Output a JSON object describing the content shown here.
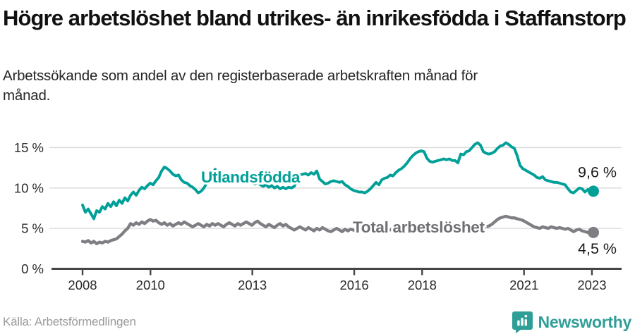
{
  "header": {
    "title": "Högre arbetslöshet bland utrikes- än inrikesfödda i Staffanstorp",
    "subtitle": "Arbetssökande som andel av den registerbaserade arbetskraften månad för månad."
  },
  "chart_data": {
    "type": "line",
    "title": "Högre arbetslöshet bland utrikes- än inrikesfödda i Staffanstorp",
    "subtitle": "Arbetssökande som andel av den registerbaserade arbetskraften månad för månad.",
    "x_unit": "month",
    "start_year": 2008,
    "end_point": "2023-02",
    "x_ticks": [
      2008,
      2010,
      2013,
      2016,
      2018,
      2021,
      2023
    ],
    "y_ticks": [
      0,
      5,
      10,
      15
    ],
    "y_tick_suffix": " %",
    "ylim": [
      0,
      16.5
    ],
    "grid": true,
    "legend_position": "inline-on-line",
    "colors": {
      "utlandsfodda": "#00a098",
      "total": "#7e7e83",
      "grid": "#dadada",
      "axis": "#454545",
      "tick_label": "#2b2b2b",
      "end_label": "#1c1c1c",
      "total_label_text": "#6f6f74"
    },
    "series": [
      {
        "name": "Total arbetslöshet",
        "end_label": "4,5 %",
        "end_value": 4.5,
        "values_by_year": [
          [
            3.4,
            3.3,
            3.5,
            3.2,
            3.4,
            3.1,
            3.3,
            3.2,
            3.4,
            3.3,
            3.5,
            3.6
          ],
          [
            3.7,
            4.0,
            4.3,
            4.7,
            5.0,
            5.6,
            5.4,
            5.7,
            5.5,
            5.8,
            5.6,
            5.9
          ],
          [
            6.1,
            5.9,
            6.0,
            5.7,
            5.5,
            5.7,
            5.4,
            5.6,
            5.3,
            5.5,
            5.7,
            5.5
          ],
          [
            5.8,
            5.6,
            5.4,
            5.2,
            5.4,
            5.6,
            5.4,
            5.2,
            5.5,
            5.3,
            5.6,
            5.4
          ],
          [
            5.6,
            5.4,
            5.2,
            5.5,
            5.7,
            5.5,
            5.3,
            5.6,
            5.4,
            5.6,
            5.8,
            5.6
          ],
          [
            5.4,
            5.7,
            5.9,
            5.6,
            5.4,
            5.2,
            5.5,
            5.3,
            5.1,
            5.4,
            5.6,
            5.3
          ],
          [
            5.5,
            5.2,
            5.0,
            4.8,
            5.0,
            5.2,
            5.0,
            4.8,
            5.1,
            4.9,
            4.7,
            5.0
          ],
          [
            4.8,
            5.1,
            4.9,
            4.7,
            4.6,
            4.8,
            5.0,
            4.8,
            4.6,
            4.9,
            4.7,
            4.9
          ],
          [
            4.8,
            4.6,
            4.7,
            4.9,
            4.8,
            4.7,
            4.8,
            4.9,
            4.7,
            4.8,
            4.9,
            4.8
          ],
          [
            4.9,
            4.8,
            5.0,
            4.9,
            4.8,
            4.9,
            5.0,
            4.9,
            4.8,
            4.9,
            5.0,
            4.9
          ],
          [
            4.8,
            4.9,
            4.8,
            4.7,
            4.8,
            4.9,
            4.8,
            4.9,
            5.0,
            4.9,
            4.8,
            4.9
          ],
          [
            4.9,
            5.0,
            4.9,
            5.0,
            5.1,
            5.0,
            5.1,
            5.2,
            5.1,
            5.2,
            5.1,
            5.2
          ],
          [
            5.3,
            5.5,
            5.8,
            6.1,
            6.3,
            6.4,
            6.5,
            6.4,
            6.3,
            6.3,
            6.2,
            6.1
          ],
          [
            6.0,
            5.8,
            5.6,
            5.4,
            5.2,
            5.1,
            5.0,
            5.2,
            5.1,
            5.0,
            5.2,
            5.1
          ],
          [
            5.0,
            5.1,
            5.0,
            4.9,
            5.0,
            4.8,
            4.6,
            4.8,
            4.9,
            4.7,
            4.6,
            4.5
          ],
          [
            4.7,
            4.5
          ]
        ]
      },
      {
        "name": "Utlandsfödda",
        "end_label": "9,6 %",
        "end_value": 9.6,
        "values_by_year": [
          [
            7.9,
            7.0,
            7.4,
            6.8,
            6.2,
            7.2,
            7.0,
            7.7,
            7.4,
            8.1,
            7.7,
            8.3
          ],
          [
            7.8,
            8.5,
            8.1,
            8.8,
            8.4,
            9.1,
            9.5,
            9.1,
            9.7,
            10.1,
            9.9,
            10.3
          ],
          [
            10.6,
            10.4,
            10.9,
            11.3,
            12.1,
            12.6,
            12.4,
            12.1,
            11.7,
            11.5,
            11.6,
            11.0
          ],
          [
            10.7,
            10.6,
            10.3,
            10.1,
            9.8,
            9.4,
            9.6,
            10.0,
            10.6,
            11.3,
            12.0,
            12.3
          ],
          [
            12.0,
            11.6,
            11.2,
            10.9,
            11.2,
            11.5,
            11.2,
            11.0,
            11.2,
            10.9,
            10.7,
            10.9
          ],
          [
            10.8,
            10.5,
            10.7,
            10.4,
            10.2,
            10.4,
            10.1,
            10.3,
            10.0,
            10.2,
            9.9,
            10.1
          ],
          [
            9.9,
            10.1,
            10.0,
            10.2,
            11.0,
            11.6,
            11.7,
            11.8,
            11.6,
            11.9,
            11.7,
            12.1
          ],
          [
            11.1,
            10.8,
            10.5,
            10.6,
            10.8,
            10.9,
            10.8,
            10.7,
            10.8,
            10.4,
            10.2,
            9.9
          ],
          [
            9.7,
            9.6,
            9.5,
            9.5,
            9.4,
            9.6,
            9.9,
            10.3,
            10.7,
            10.4,
            11.0,
            11.2
          ],
          [
            11.3,
            11.6,
            11.5,
            11.9,
            12.2,
            12.4,
            12.7,
            13.1,
            13.6,
            14.0,
            14.3,
            14.5
          ],
          [
            14.6,
            14.5,
            13.7,
            13.3,
            13.2,
            13.3,
            13.4,
            13.5,
            13.6,
            13.5,
            13.6,
            13.4
          ],
          [
            13.4,
            13.1,
            14.2,
            14.1,
            14.5,
            14.6,
            15.0,
            15.4,
            15.6,
            15.3,
            14.5,
            14.3
          ],
          [
            14.2,
            14.3,
            14.5,
            14.9,
            15.2,
            15.3,
            15.6,
            15.4,
            15.1,
            14.9,
            14.0,
            12.8
          ],
          [
            12.4,
            12.2,
            12.0,
            11.8,
            11.6,
            11.3,
            11.2,
            11.4,
            11.0,
            10.9,
            10.8,
            10.7
          ],
          [
            10.7,
            10.6,
            10.5,
            10.4,
            9.9,
            9.5,
            9.4,
            9.7,
            10.0,
            9.9,
            9.5,
            9.8
          ],
          [
            9.4,
            9.6
          ]
        ]
      }
    ]
  },
  "footer": {
    "source": "Källa: Arbetsförmedlingen",
    "brand": "Newsworthy"
  }
}
